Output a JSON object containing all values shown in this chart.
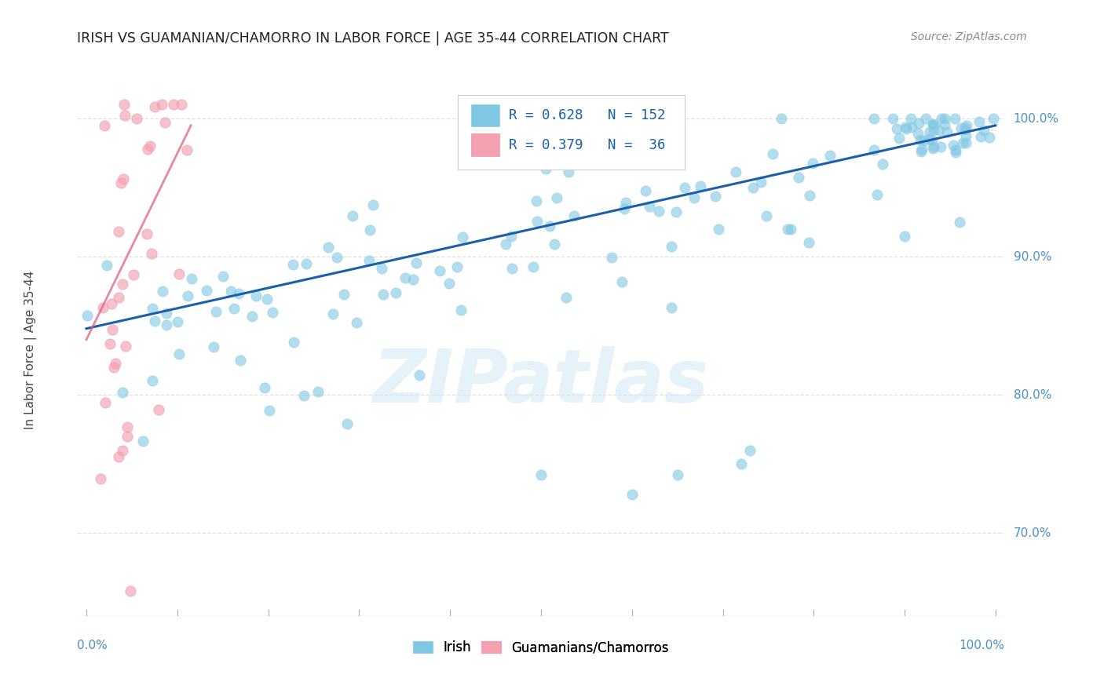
{
  "title": "IRISH VS GUAMANIAN/CHAMORRO IN LABOR FORCE | AGE 35-44 CORRELATION CHART",
  "source": "Source: ZipAtlas.com",
  "ylabel": "In Labor Force | Age 35-44",
  "irish_color": "#7ec8e3",
  "irish_color_dark": "#4a90c4",
  "guam_color": "#f4a0b0",
  "guam_color_dark": "#e06080",
  "irish_line_color": "#1a5fa8",
  "guam_line_color": "#e06080",
  "irish_R": 0.628,
  "irish_N": 152,
  "guam_R": 0.379,
  "guam_N": 36,
  "legend_irish_label": "Irish",
  "legend_guam_label": "Guamanians/Chamorros",
  "watermark_text": "ZIPatlas",
  "background_color": "#ffffff",
  "grid_color": "#e0e0e0",
  "title_color": "#222222",
  "right_label_color": "#4a90c4",
  "ymin": 0.64,
  "ymax": 1.025,
  "xmin": -0.01,
  "xmax": 1.01,
  "irish_line_x0": 0.0,
  "irish_line_x1": 1.0,
  "irish_line_y0": 0.848,
  "irish_line_y1": 0.995,
  "guam_line_x0": 0.0,
  "guam_line_x1": 0.115,
  "guam_line_y0": 0.84,
  "guam_line_y1": 0.995
}
